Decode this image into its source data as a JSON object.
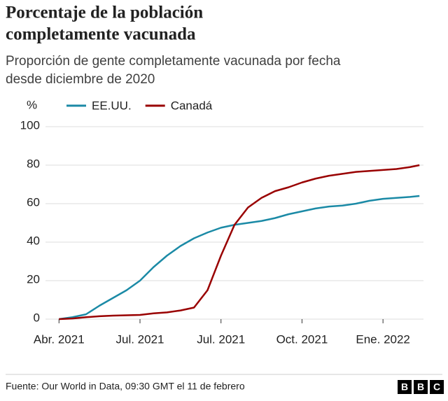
{
  "chart_data": {
    "type": "line",
    "title": [
      "Porcentaje de la población",
      "completamente vacunada"
    ],
    "subtitle": [
      "Proporción de gente completamente vacunada por fecha",
      "desde diciembre de 2020"
    ],
    "y_label": "%",
    "x": [
      0,
      1,
      2,
      3,
      4,
      5,
      6,
      7,
      8,
      9,
      10,
      11,
      12,
      13,
      14,
      15,
      16,
      17,
      18,
      19,
      20,
      21,
      22,
      23,
      24,
      25,
      26,
      27,
      27.7
    ],
    "series": [
      {
        "name": "EE.UU.",
        "color": "#1b8aa6",
        "values": [
          null,
          0,
          1,
          2.5,
          7,
          11,
          15,
          20,
          27,
          33,
          38,
          42,
          45,
          47.5,
          49,
          50,
          51,
          52.5,
          54.5,
          56,
          57.5,
          58.5,
          59,
          60,
          61.5,
          62.5,
          63,
          63.5,
          64
        ]
      },
      {
        "name": "Canadá",
        "color": "#990000",
        "values": [
          null,
          0,
          0.3,
          1,
          1.5,
          1.8,
          2,
          2.2,
          3,
          3.5,
          4.5,
          6,
          15,
          33,
          49,
          58,
          63,
          66.5,
          68.5,
          71,
          73,
          74.5,
          75.5,
          76.5,
          77,
          77.5,
          78,
          79,
          80
        ]
      }
    ],
    "xlim": [
      0,
      28
    ],
    "xticks": [
      {
        "value": 1,
        "label": "Abr. 2021"
      },
      {
        "value": 7,
        "label": "Jul. 2021"
      },
      {
        "value": 13,
        "label": "Jul. 2021"
      },
      {
        "value": 19,
        "label": "Oct. 2021"
      },
      {
        "value": 25,
        "label": "Ene. 2022"
      }
    ],
    "ylim": [
      0,
      100
    ],
    "yticks": [
      0,
      20,
      40,
      60,
      80,
      100
    ],
    "grid": true,
    "source": "Fuente: Our World in Data, 09:30 GMT el 11 de febrero",
    "logo": [
      "B",
      "B",
      "C"
    ]
  }
}
